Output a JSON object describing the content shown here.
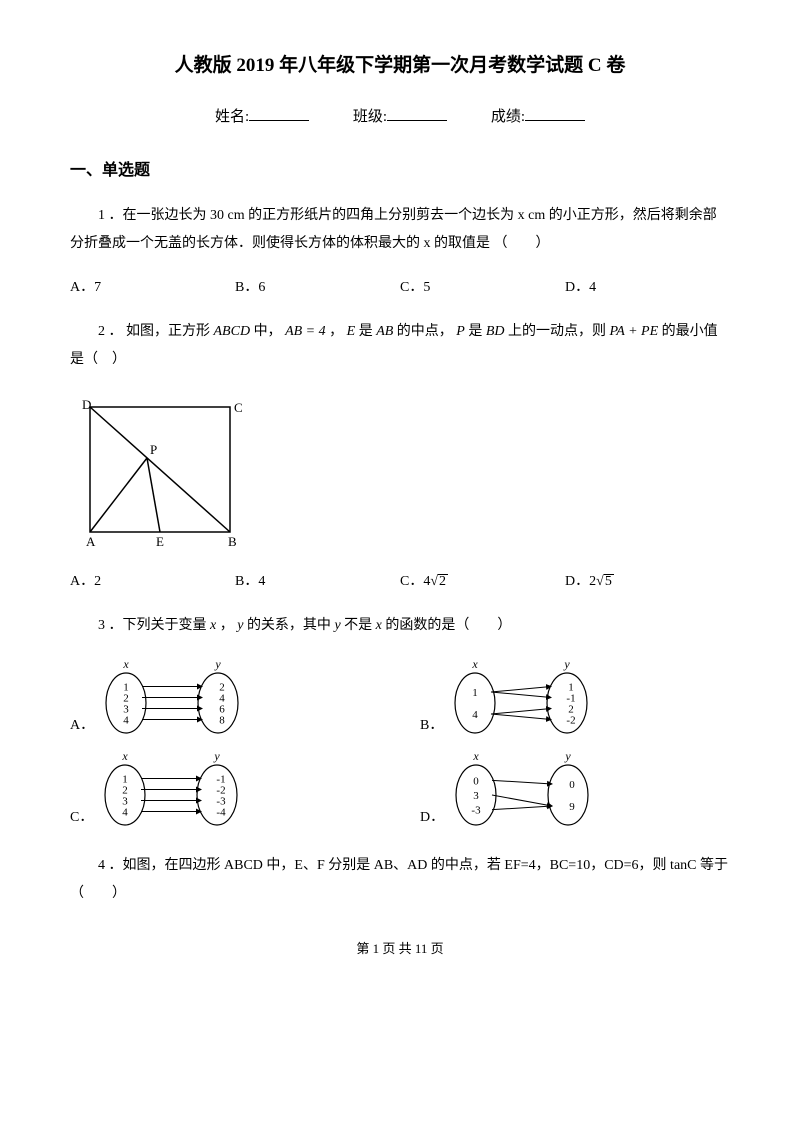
{
  "title": "人教版 2019 年八年级下学期第一次月考数学试题 C 卷",
  "header": {
    "name_label": "姓名:",
    "class_label": "班级:",
    "score_label": "成绩:"
  },
  "section_title": "一、单选题",
  "q1": {
    "text": "1 ．在一张边长为 30 cm 的正方形纸片的四角上分别剪去一个边长为 x cm 的小正方形，然后将剩余部分折叠成一个无盖的长方体．则使得长方体的体积最大的 x 的取值是 （　　）",
    "A": "A．7",
    "B": "B．6",
    "C": "C．5",
    "D": "D．4"
  },
  "q2": {
    "prefix": "2 ． 如图，正方形",
    "abcd": "ABCD",
    "mid1": "中，",
    "ab_eq": "AB = 4",
    "mid2": "，",
    "e_is": "E",
    "mid3": "是",
    "ab": "AB",
    "mid4": "的中点，",
    "p_is": "P",
    "mid5": "是",
    "bd": "BD",
    "mid6": "上的一动点，则",
    "pa_pe": "PA + PE",
    "suffix": "的最小值是（　）",
    "A": "A．2",
    "B": "B．4",
    "C_label": "C．",
    "C_coef": "4",
    "C_rad": "2",
    "D_label": "D．",
    "D_coef": "2",
    "D_rad": "5",
    "svg": {
      "D": "D",
      "C": "C",
      "A": "A",
      "B": "B",
      "E": "E",
      "P": "P"
    }
  },
  "q3": {
    "prefix": "3 ．下列关于变量",
    "x": "x",
    "mid1": "，",
    "y": "y",
    "mid2": "的关系，其中",
    "y2": "y",
    "mid3": "不是",
    "x2": "x",
    "suffix": "的函数的是（　　）",
    "labelA": "A．",
    "labelB": "B．",
    "labelC": "C．",
    "labelD": "D．",
    "diag": {
      "x": "x",
      "y": "y",
      "A_left": [
        "1",
        "2",
        "3",
        "4"
      ],
      "A_right": [
        "2",
        "4",
        "6",
        "8"
      ],
      "B_left": [
        "1",
        "4"
      ],
      "B_right": [
        "1",
        "-1",
        "2",
        "-2"
      ],
      "C_left": [
        "1",
        "2",
        "3",
        "4"
      ],
      "C_right": [
        "-1",
        "-2",
        "-3",
        "-4"
      ],
      "D_left": [
        "0",
        "3",
        "-3"
      ],
      "D_right": [
        "0",
        "9"
      ]
    }
  },
  "q4": {
    "text": "4 ．如图，在四边形 ABCD 中，E、F 分别是 AB、AD 的中点，若 EF=4，BC=10，CD=6，则 tanC 等于（　　）"
  },
  "footer": "第 1 页 共 11 页"
}
